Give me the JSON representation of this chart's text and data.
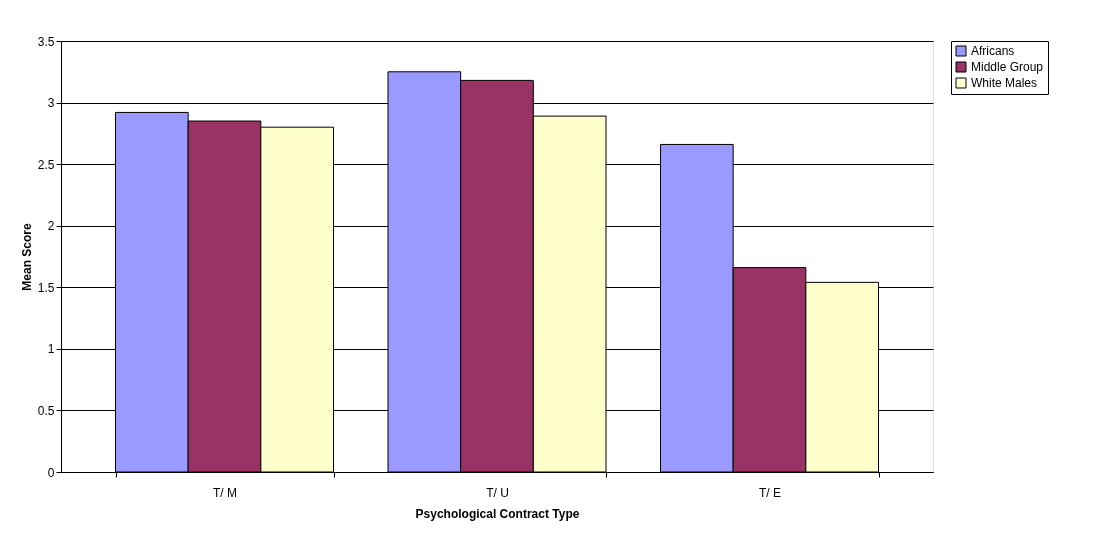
{
  "chart_data": {
    "type": "bar",
    "xlabel": "Psychological Contract Type",
    "ylabel": "Mean Score",
    "categories": [
      "T/ M",
      "T/ U",
      "T/ E"
    ],
    "series": [
      {
        "name": "Africans",
        "color": "#9999ff",
        "values": [
          2.92,
          3.25,
          2.66
        ]
      },
      {
        "name": "Middle Group",
        "color": "#993366",
        "values": [
          2.85,
          3.18,
          1.66
        ]
      },
      {
        "name": "White Males",
        "color": "#ffffcc",
        "values": [
          2.8,
          2.89,
          1.54
        ]
      }
    ],
    "ylim": [
      0,
      3.5
    ],
    "yticks": [
      0,
      0.5,
      1,
      1.5,
      2,
      2.5,
      3,
      3.5
    ],
    "grid": "y",
    "legend": "right"
  }
}
